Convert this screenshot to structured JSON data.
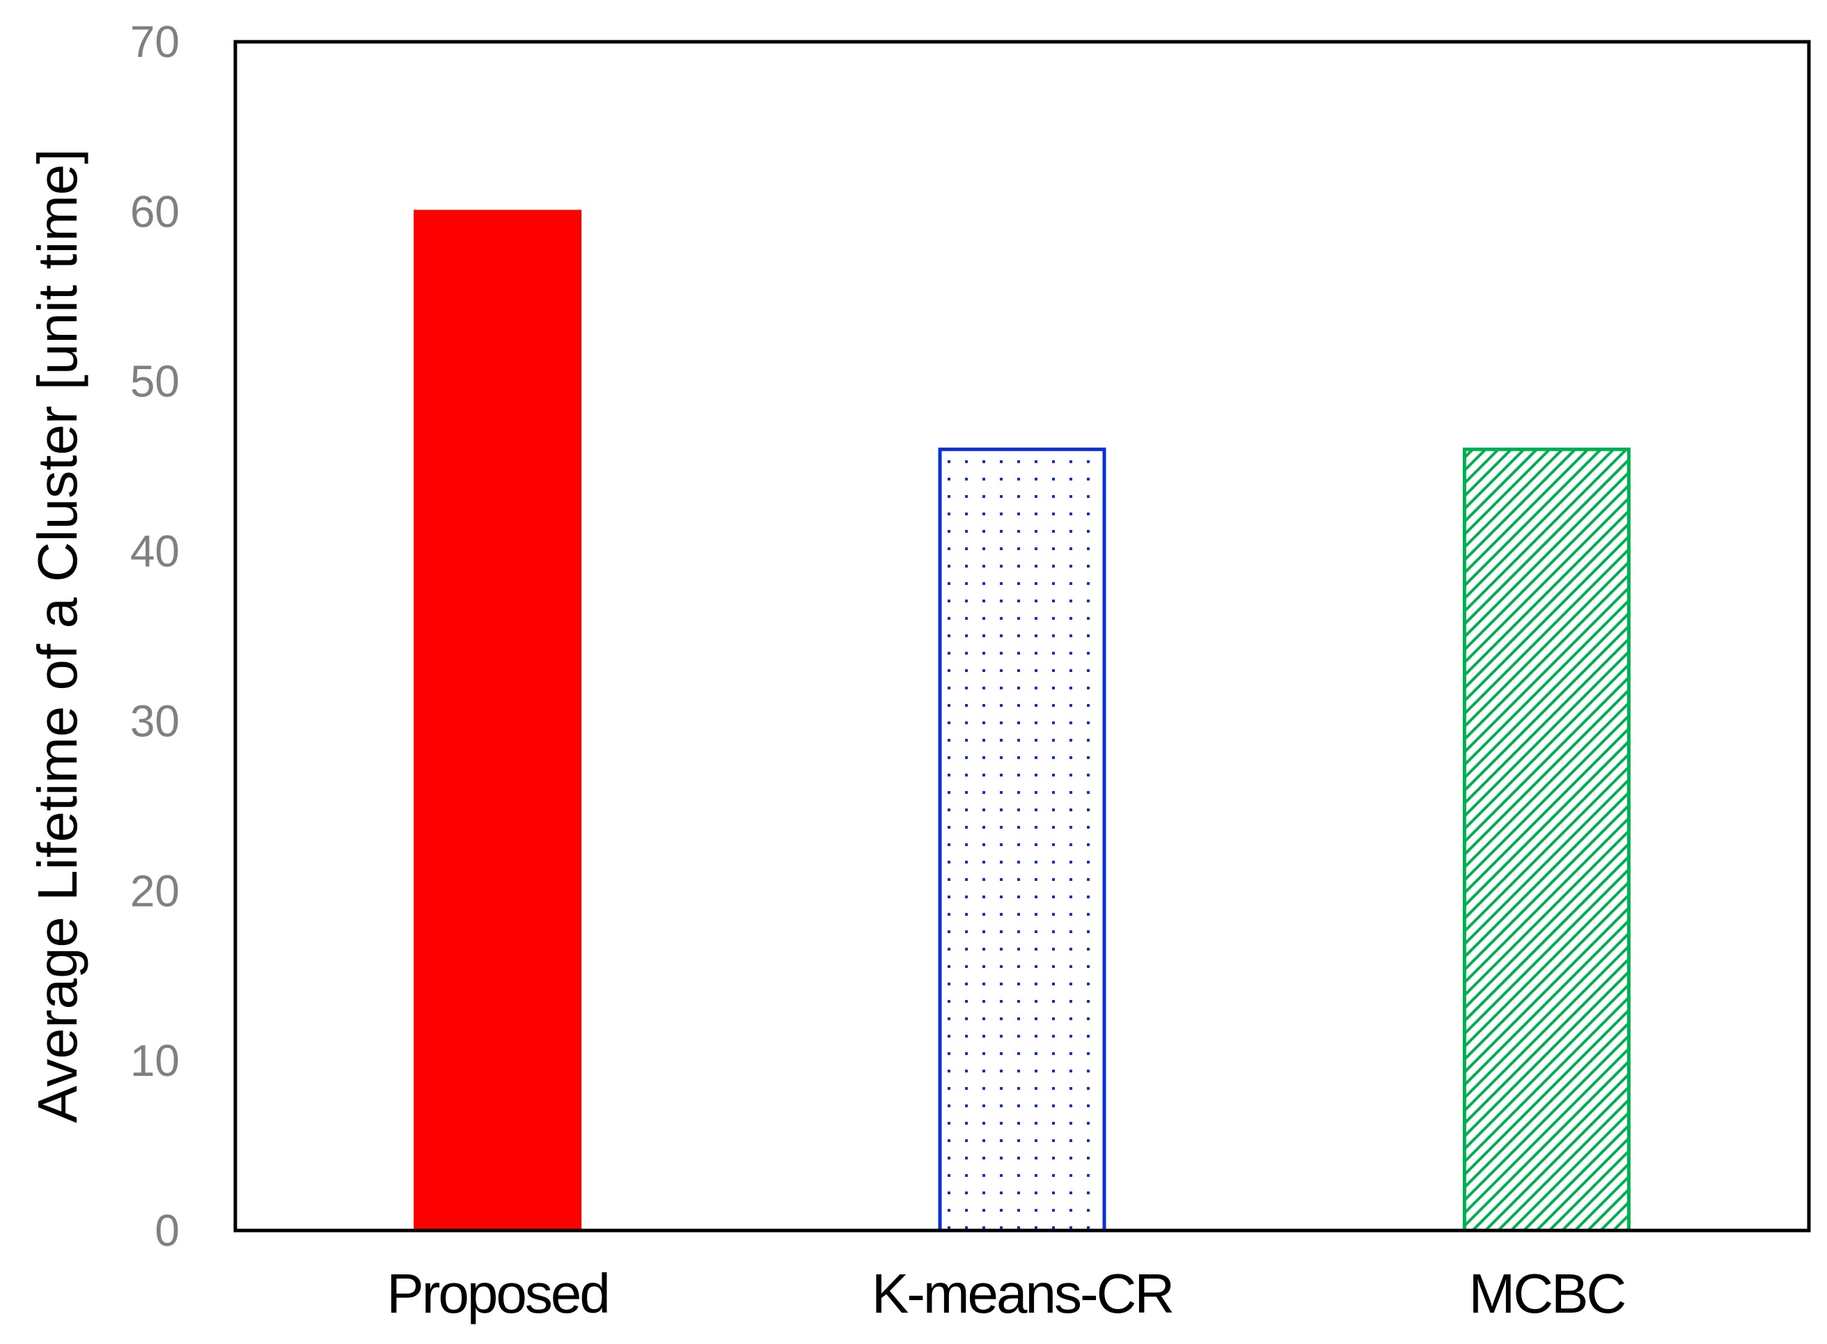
{
  "chart_data": {
    "type": "bar",
    "title": "",
    "xlabel": "",
    "ylabel": "Average Lifetime of a Cluster [unit time]",
    "categories": [
      "Proposed",
      "K-means-CR",
      "MCBC"
    ],
    "values": [
      60,
      46,
      46
    ],
    "ylim": [
      0,
      70
    ],
    "yticks": [
      0,
      10,
      20,
      30,
      40,
      50,
      60,
      70
    ],
    "grid": false,
    "legend": "none",
    "bar_styles": [
      {
        "fill": "solid",
        "color": "#ff0000"
      },
      {
        "fill": "dots",
        "color": "#0a2fd6"
      },
      {
        "fill": "diagonal-hatch",
        "color": "#00b050"
      }
    ]
  }
}
